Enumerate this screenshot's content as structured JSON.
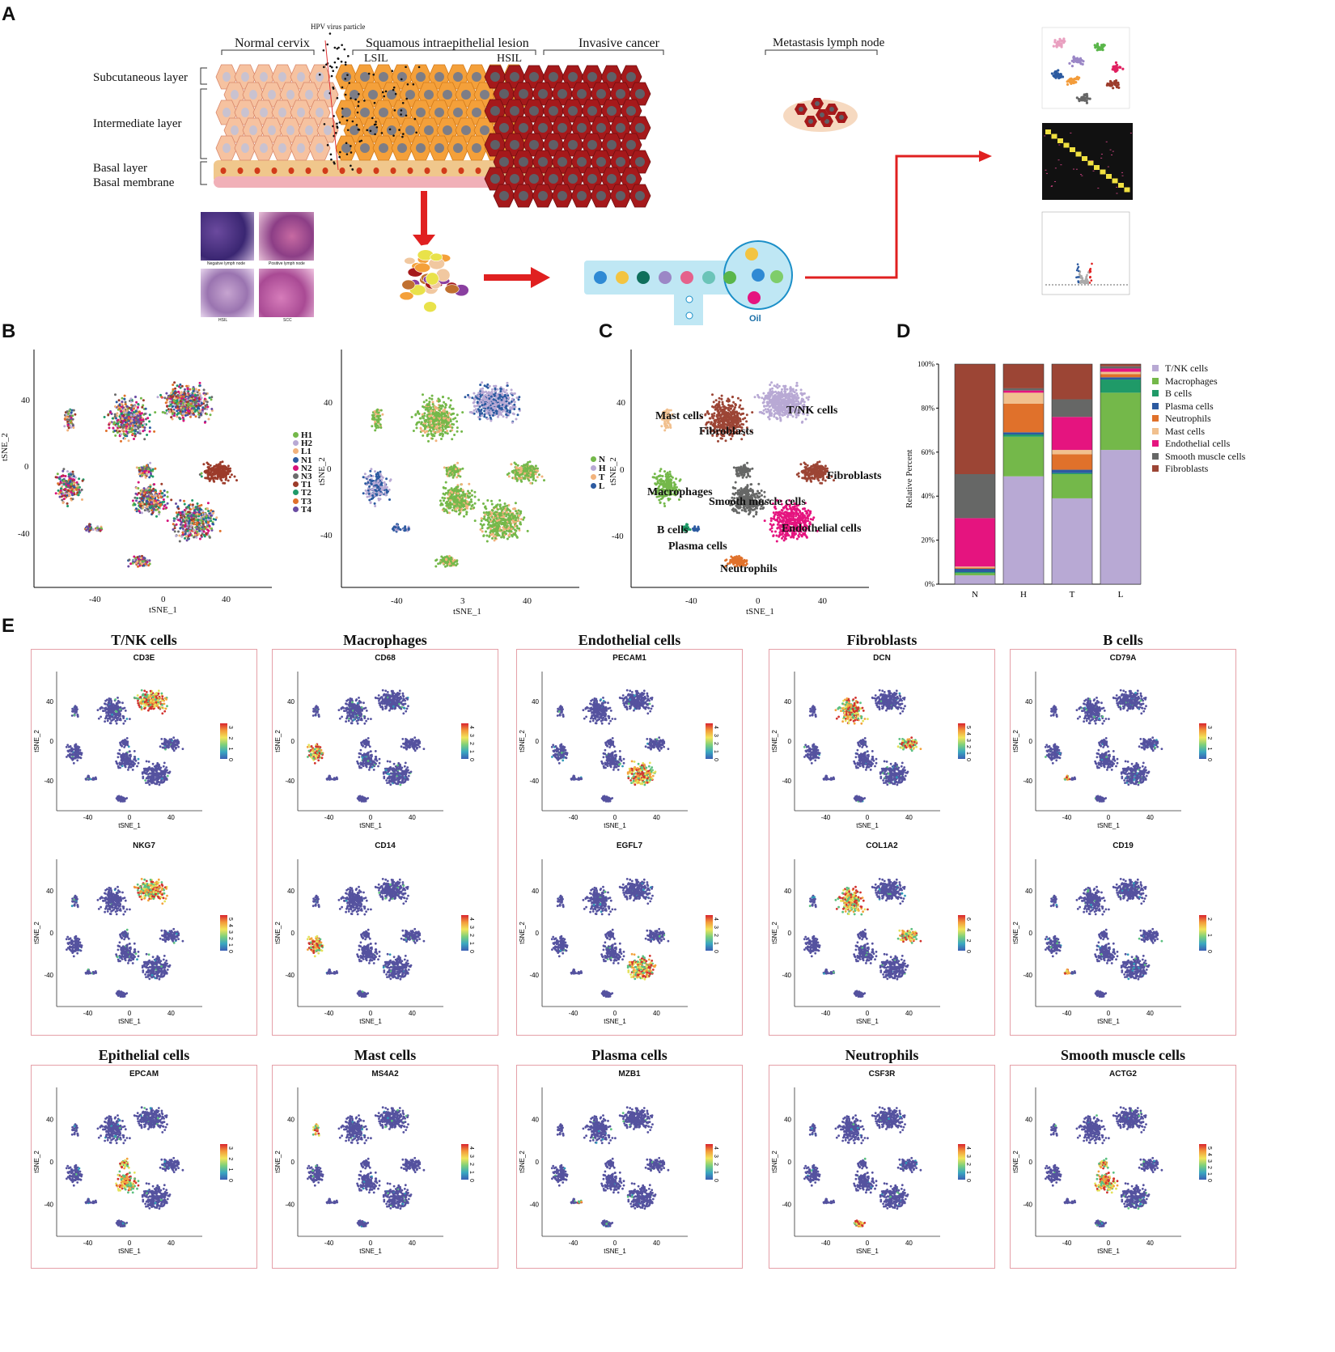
{
  "panels": {
    "A": "A",
    "B": "B",
    "C": "C",
    "D": "D",
    "E": "E"
  },
  "panelA": {
    "hpv": "HPV virus particle",
    "normal": "Normal cervix",
    "sil": "Squamous intraepithelial lesion",
    "lsil": "LSIL",
    "hsil": "HSIL",
    "invasive": "Invasive cancer",
    "metastasis": "Metastasis lymph node",
    "layers": [
      "Subcutaneous layer",
      "Intermediate layer",
      "Basal layer",
      "Basal membrane"
    ],
    "histo": [
      "Negative lymph node",
      "Positive lymph node",
      "HSIL",
      "SCC"
    ],
    "oil": "Oil"
  },
  "panelB": {
    "axis_x": "tSNE_1",
    "axis_y": "tSNE_2",
    "ticks_x": [
      "-40",
      "0",
      "40"
    ],
    "ticks_x_right": [
      "-40",
      "3",
      "40"
    ],
    "ticks_y": [
      "40",
      "0",
      "-40"
    ],
    "legend_samples": [
      {
        "label": "H1",
        "color": "#74b84a"
      },
      {
        "label": "H2",
        "color": "#b8a9d4"
      },
      {
        "label": "L1",
        "color": "#f1b27c"
      },
      {
        "label": "N1",
        "color": "#2c5aa0"
      },
      {
        "label": "N2",
        "color": "#d6127a"
      },
      {
        "label": "N3",
        "color": "#6b6b6b"
      },
      {
        "label": "T1",
        "color": "#9c3b2a"
      },
      {
        "label": "T2",
        "color": "#1f9a68"
      },
      {
        "label": "T3",
        "color": "#e0712b"
      },
      {
        "label": "T4",
        "color": "#6a4ca2"
      }
    ],
    "legend_groups": [
      {
        "label": "N",
        "color": "#74b84a"
      },
      {
        "label": "H",
        "color": "#b8a9d4"
      },
      {
        "label": "T",
        "color": "#f1b27c"
      },
      {
        "label": "L",
        "color": "#2c5aa0"
      }
    ]
  },
  "panelC": {
    "axis_x": "tSNE_1",
    "axis_y": "tSNE_2",
    "ticks_x": [
      "-40",
      "0",
      "40"
    ],
    "ticks_y": [
      "40",
      "0",
      "-40"
    ],
    "labels": [
      "Mast cells",
      "Fibroblasts",
      "T/NK cells",
      "Fibroblasts",
      "Macrophages",
      "Smooth muscle cells",
      "Endothelial cells",
      "B cells",
      "Plasma cells",
      "Neutrophils"
    ]
  },
  "chart_data": {
    "type": "bar",
    "stacked": true,
    "ylabel": "Relative Percent",
    "categories": [
      "N",
      "H",
      "T",
      "L"
    ],
    "yticks": [
      "0%",
      "20%",
      "40%",
      "60%",
      "80%",
      "100%"
    ],
    "series": [
      {
        "name": "T/NK cells",
        "color": "#b8a9d4",
        "values": [
          4,
          49,
          39,
          61
        ]
      },
      {
        "name": "Macrophages",
        "color": "#74b84a",
        "values": [
          1,
          18,
          11,
          26
        ]
      },
      {
        "name": "B cells",
        "color": "#1f9a68",
        "values": [
          0.5,
          1,
          0.5,
          6
        ]
      },
      {
        "name": "Plasma cells",
        "color": "#2c5aa0",
        "values": [
          1.5,
          1,
          1.5,
          1
        ]
      },
      {
        "name": "Neutrophils",
        "color": "#e0712b",
        "values": [
          0.5,
          13,
          7,
          1.5
        ]
      },
      {
        "name": "Mast cells",
        "color": "#f1c08e",
        "values": [
          0.5,
          5,
          2,
          1
        ]
      },
      {
        "name": "Endothelial cells",
        "color": "#e5147f",
        "values": [
          22,
          1,
          15,
          1.5
        ]
      },
      {
        "name": "Smooth muscle cells",
        "color": "#666766",
        "values": [
          20,
          1,
          8,
          1
        ]
      },
      {
        "name": "Fibroblasts",
        "color": "#9c4535",
        "values": [
          50,
          11,
          16,
          1
        ]
      }
    ]
  },
  "panelE": {
    "axis_x": "tSNE_1",
    "axis_y": "tSNE_2",
    "ticks_x": [
      "-40",
      "0",
      "40"
    ],
    "ticks_y": [
      "40",
      "0",
      "-40"
    ],
    "groups": [
      {
        "title": "T/NK cells",
        "genes": [
          {
            "name": "CD3E",
            "scale": [
              "3",
              "2",
              "1",
              "0"
            ]
          },
          {
            "name": "NKG7",
            "scale": [
              "5",
              "4",
              "3",
              "2",
              "1",
              "0"
            ]
          }
        ]
      },
      {
        "title": "Macrophages",
        "genes": [
          {
            "name": "CD68",
            "scale": [
              "4",
              "3",
              "2",
              "1",
              "0"
            ]
          },
          {
            "name": "CD14",
            "scale": [
              "4",
              "3",
              "2",
              "1",
              "0"
            ]
          }
        ]
      },
      {
        "title": "Endothelial cells",
        "genes": [
          {
            "name": "PECAM1",
            "scale": [
              "4",
              "3",
              "2",
              "1",
              "0"
            ]
          },
          {
            "name": "EGFL7",
            "scale": [
              "4",
              "3",
              "2",
              "1",
              "0"
            ]
          }
        ]
      },
      {
        "title": "Fibroblasts",
        "genes": [
          {
            "name": "DCN",
            "scale": [
              "5",
              "4",
              "3",
              "2",
              "1",
              "0"
            ]
          },
          {
            "name": "COL1A2",
            "scale": [
              "6",
              "4",
              "2",
              "0"
            ]
          }
        ]
      },
      {
        "title": "B cells",
        "genes": [
          {
            "name": "CD79A",
            "scale": [
              "3",
              "2",
              "1",
              "0"
            ]
          },
          {
            "name": "CD19",
            "scale": [
              "2",
              "1",
              "0"
            ]
          }
        ]
      }
    ],
    "row2": [
      {
        "title": "Epithelial cells",
        "gene": "EPCAM",
        "scale": [
          "3",
          "2",
          "1",
          "0"
        ]
      },
      {
        "title": "Mast cells",
        "gene": "MS4A2",
        "scale": [
          "4",
          "3",
          "2",
          "1",
          "0"
        ]
      },
      {
        "title": "Plasma cells",
        "gene": "MZB1",
        "scale": [
          "4",
          "3",
          "2",
          "1",
          "0"
        ]
      },
      {
        "title": "Neutrophils",
        "gene": "CSF3R",
        "scale": [
          "4",
          "3",
          "2",
          "1",
          "0"
        ]
      },
      {
        "title": "Smooth muscle cells",
        "gene": "ACTG2",
        "scale": [
          "5",
          "4",
          "3",
          "2",
          "1",
          "0"
        ]
      }
    ]
  }
}
